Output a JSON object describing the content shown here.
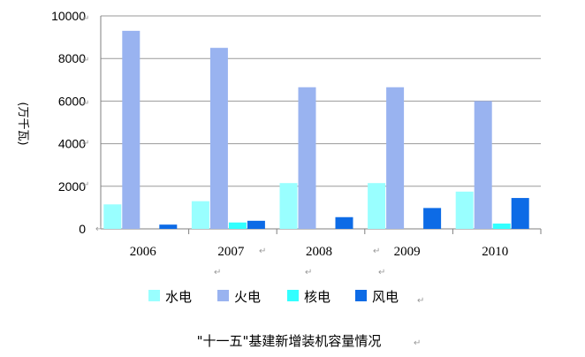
{
  "chart_data": {
    "type": "bar",
    "title": "\"十一五\"基建新增装机容量情况",
    "ylabel": "(万千瓦)",
    "xlabel": "",
    "categories": [
      "2006",
      "2007",
      "2008",
      "2009",
      "2010"
    ],
    "ylim": [
      0,
      10000
    ],
    "yticks": [
      0,
      2000,
      4000,
      6000,
      8000,
      10000
    ],
    "grid": true,
    "legend_position": "bottom",
    "series": [
      {
        "name": "水电",
        "color": "#99ffff",
        "values": [
          1150,
          1300,
          2150,
          2150,
          1750
        ]
      },
      {
        "name": "火电",
        "color": "#99b3f0",
        "values": [
          9300,
          8500,
          6650,
          6650,
          6000
        ]
      },
      {
        "name": "核电",
        "color": "#33ffff",
        "values": [
          0,
          300,
          0,
          0,
          250
        ]
      },
      {
        "name": "风电",
        "color": "#0d6be6",
        "values": [
          200,
          380,
          550,
          980,
          1450
        ]
      }
    ]
  },
  "paragraph_mark": "↵"
}
